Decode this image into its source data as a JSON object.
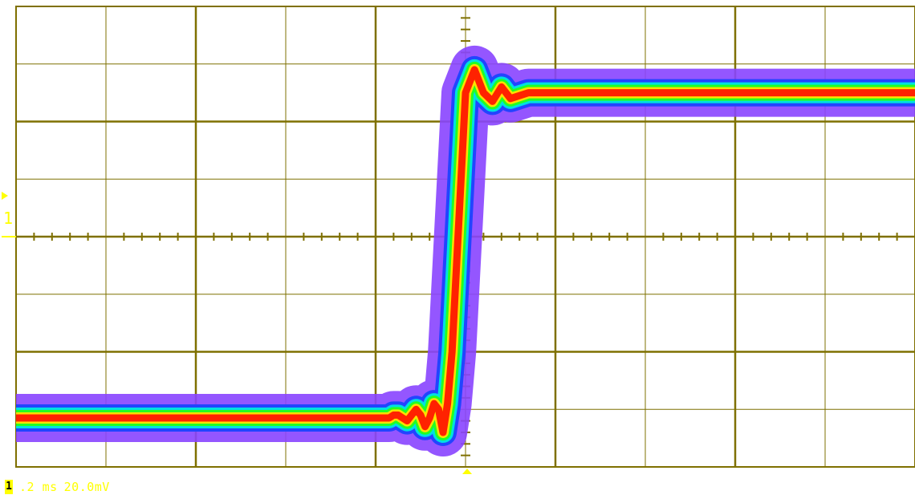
{
  "chart_data": {
    "type": "line",
    "title": "",
    "xlabel": "",
    "ylabel": "",
    "grid": true,
    "divisions": {
      "x": 10,
      "y": 8
    },
    "timebase": ".2 ms",
    "vscale": "20.0mV",
    "channel": "1",
    "xlim": [
      -1.0,
      1.0
    ],
    "ylim": [
      -80,
      80
    ],
    "series": [
      {
        "name": "",
        "x": [
          -1.0,
          -0.2,
          -0.17,
          -0.16,
          -0.15,
          -0.14,
          -0.13,
          -0.12,
          -0.11,
          -0.1,
          -0.09,
          -0.08,
          -0.07,
          -0.06,
          -0.05,
          -0.04,
          -0.03,
          -0.02,
          -0.01,
          0.0,
          0.02,
          0.04,
          0.06,
          0.08,
          0.1,
          0.14,
          0.2,
          1.0
        ],
        "y": [
          -63,
          -63,
          -63,
          -62,
          -62,
          -63,
          -64,
          -62,
          -60,
          -62,
          -66,
          -63,
          -58,
          -60,
          -68,
          -58,
          -40,
          -10,
          20,
          50,
          58,
          50,
          47,
          52,
          48,
          50,
          50,
          50
        ]
      }
    ],
    "colors": {
      "grid": "#7f7000",
      "trace_outer": "#8844ff",
      "trace_blue": "#2244ff",
      "trace_cyan": "#00e0e0",
      "trace_green": "#22ff22",
      "trace_yellow": "#ffe000",
      "trace_red": "#ff2200",
      "label": "#ffff00"
    }
  }
}
